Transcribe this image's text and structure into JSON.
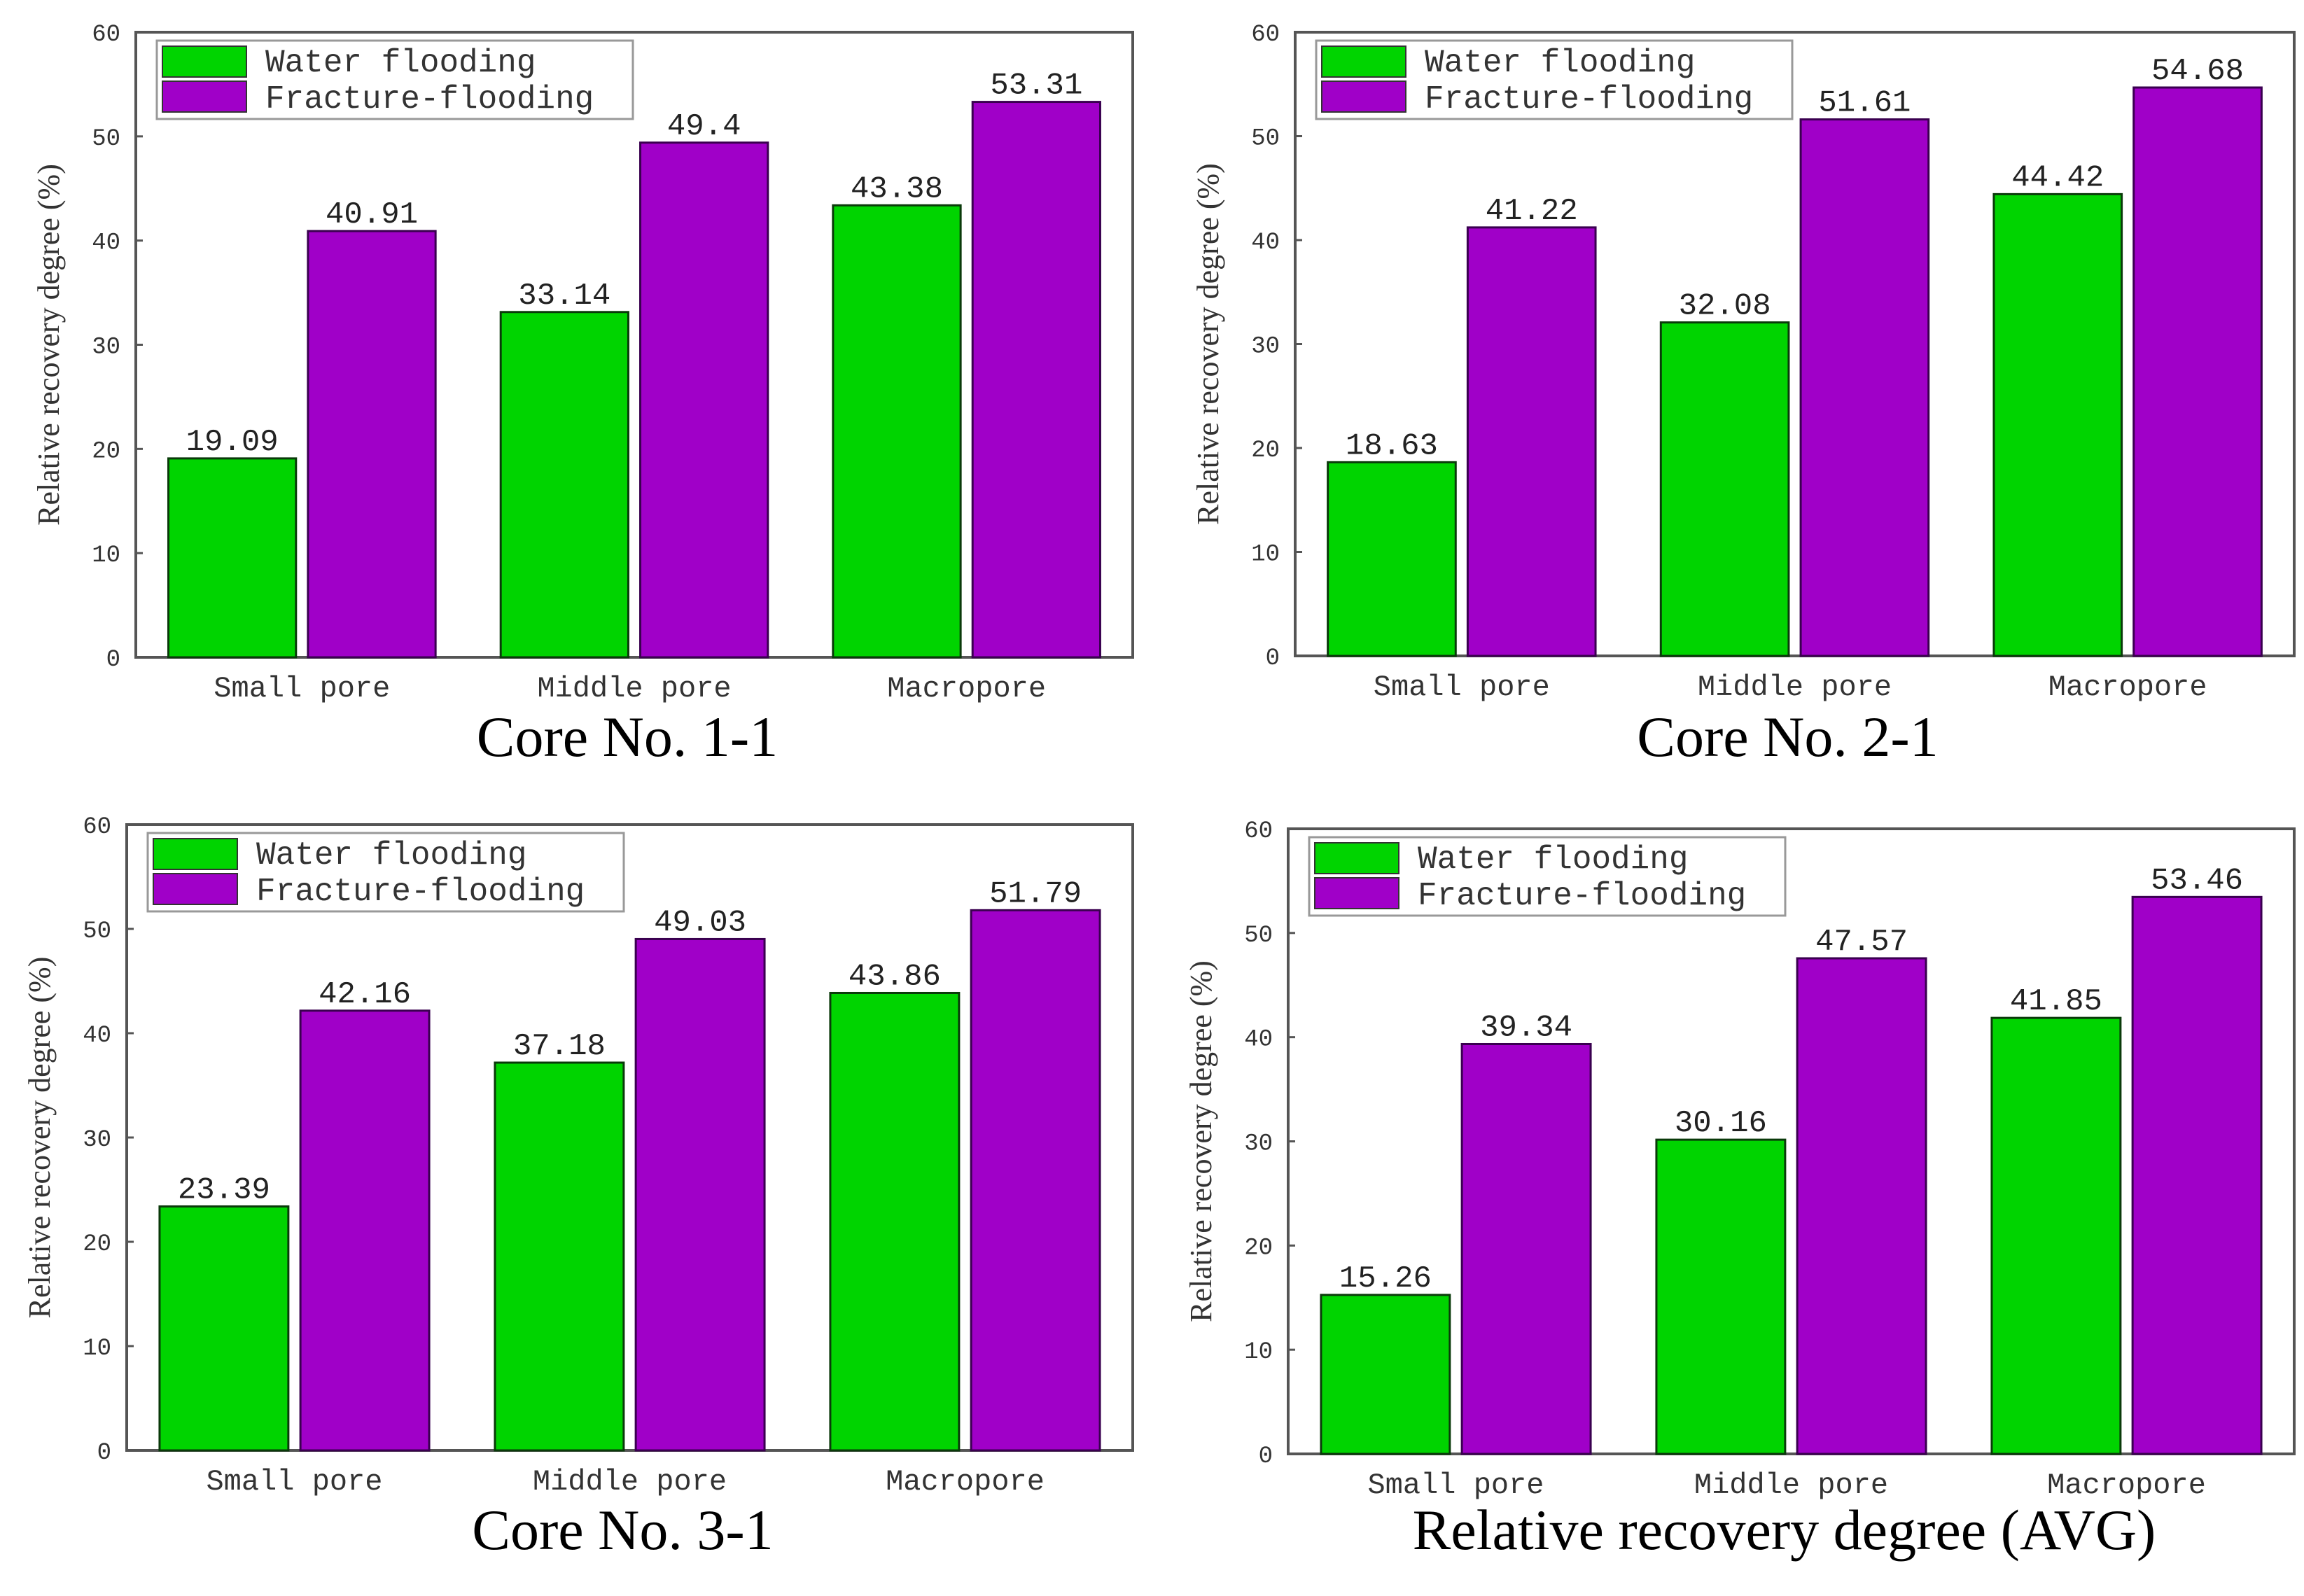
{
  "chart_data": [
    {
      "type": "bar",
      "title": "Core No. 1-1",
      "ylabel": "Relative recovery degree (%)",
      "xlabel": "",
      "ylim": [
        0,
        60
      ],
      "yticks": [
        0,
        10,
        20,
        30,
        40,
        50,
        60
      ],
      "categories": [
        "Small pore",
        "Middle pore",
        "Macropore"
      ],
      "series": [
        {
          "name": "Water flooding",
          "values": [
            19.09,
            33.14,
            43.38
          ],
          "labels": [
            "19.09",
            "33.14",
            "43.38"
          ]
        },
        {
          "name": "Fracture-flooding",
          "values": [
            40.91,
            49.4,
            53.31
          ],
          "labels": [
            "40.91",
            "49.4",
            "53.31"
          ]
        }
      ],
      "legend": "top-left",
      "grid": false
    },
    {
      "type": "bar",
      "title": "Core No. 2-1",
      "ylabel": "Relative recovery degree (%)",
      "xlabel": "",
      "ylim": [
        0,
        60
      ],
      "yticks": [
        0,
        10,
        20,
        30,
        40,
        50,
        60
      ],
      "categories": [
        "Small pore",
        "Middle pore",
        "Macropore"
      ],
      "series": [
        {
          "name": "Water flooding",
          "values": [
            18.63,
            32.08,
            44.42
          ],
          "labels": [
            "18.63",
            "32.08",
            "44.42"
          ]
        },
        {
          "name": "Fracture-flooding",
          "values": [
            41.22,
            51.61,
            54.68
          ],
          "labels": [
            "41.22",
            "51.61",
            "54.68"
          ]
        }
      ],
      "legend": "top-left",
      "grid": false
    },
    {
      "type": "bar",
      "title": "Core No. 3-1",
      "ylabel": "Relative recovery degree (%)",
      "xlabel": "",
      "ylim": [
        0,
        60
      ],
      "yticks": [
        0,
        10,
        20,
        30,
        40,
        50,
        60
      ],
      "categories": [
        "Small pore",
        "Middle pore",
        "Macropore"
      ],
      "series": [
        {
          "name": "Water flooding",
          "values": [
            23.39,
            37.18,
            43.86
          ],
          "labels": [
            "23.39",
            "37.18",
            "43.86"
          ]
        },
        {
          "name": "Fracture-flooding",
          "values": [
            42.16,
            49.03,
            51.79
          ],
          "labels": [
            "42.16",
            "49.03",
            "51.79"
          ]
        }
      ],
      "legend": "top-left",
      "grid": false
    },
    {
      "type": "bar",
      "title": "Relative recovery degree (AVG)",
      "ylabel": "Relative recovery degree (%)",
      "xlabel": "",
      "ylim": [
        0,
        60
      ],
      "yticks": [
        0,
        10,
        20,
        30,
        40,
        50,
        60
      ],
      "categories": [
        "Small pore",
        "Middle pore",
        "Macropore"
      ],
      "series": [
        {
          "name": "Water flooding",
          "values": [
            15.26,
            30.16,
            41.85
          ],
          "labels": [
            "15.26",
            "30.16",
            "41.85"
          ]
        },
        {
          "name": "Fracture-flooding",
          "values": [
            39.34,
            47.57,
            53.46
          ],
          "labels": [
            "39.34",
            "47.57",
            "53.46"
          ]
        }
      ],
      "legend": "top-left",
      "grid": false
    }
  ],
  "colors": {
    "water": "#00d400",
    "fracture": "#a000c8"
  }
}
